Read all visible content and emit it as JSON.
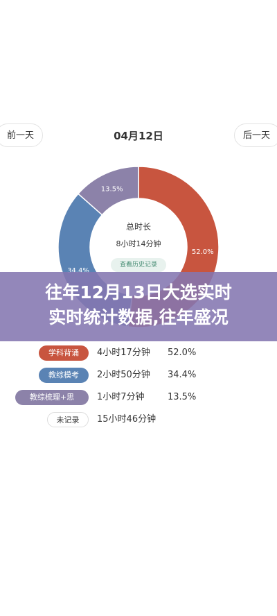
{
  "nav": {
    "prev_label": "前一天",
    "next_label": "后一天",
    "date": "04月12日"
  },
  "donut": {
    "center_title": "总时长",
    "center_total": "8小时14分钟",
    "history_button": "查看历史记录"
  },
  "banner": {
    "line1": "往年12月13日大选实时",
    "line2": "实时统计数据,往年盛况"
  },
  "chart_data": {
    "type": "pie",
    "categories": [
      "学科背诵",
      "教综模考",
      "教综梳理+思"
    ],
    "values": [
      52.0,
      34.4,
      13.5
    ],
    "value_labels": [
      "52.0%",
      "34.4%",
      "13.5%"
    ],
    "colors": [
      "#c8553f",
      "#5a83b4",
      "#8c82a9"
    ]
  },
  "legend": [
    {
      "name": "学科背诵",
      "time": "4小时17分钟",
      "pct": "52.0%",
      "color": "#c8553f"
    },
    {
      "name": "教综模考",
      "time": "2小时50分钟",
      "pct": "34.4%",
      "color": "#5a83b4"
    },
    {
      "name": "教综梳理+思",
      "time": "1小时7分钟",
      "pct": "13.5%",
      "color": "#8c82a9"
    },
    {
      "name": "未记录",
      "time": "15小时46分钟",
      "pct": "",
      "color": "#ffffff"
    }
  ]
}
